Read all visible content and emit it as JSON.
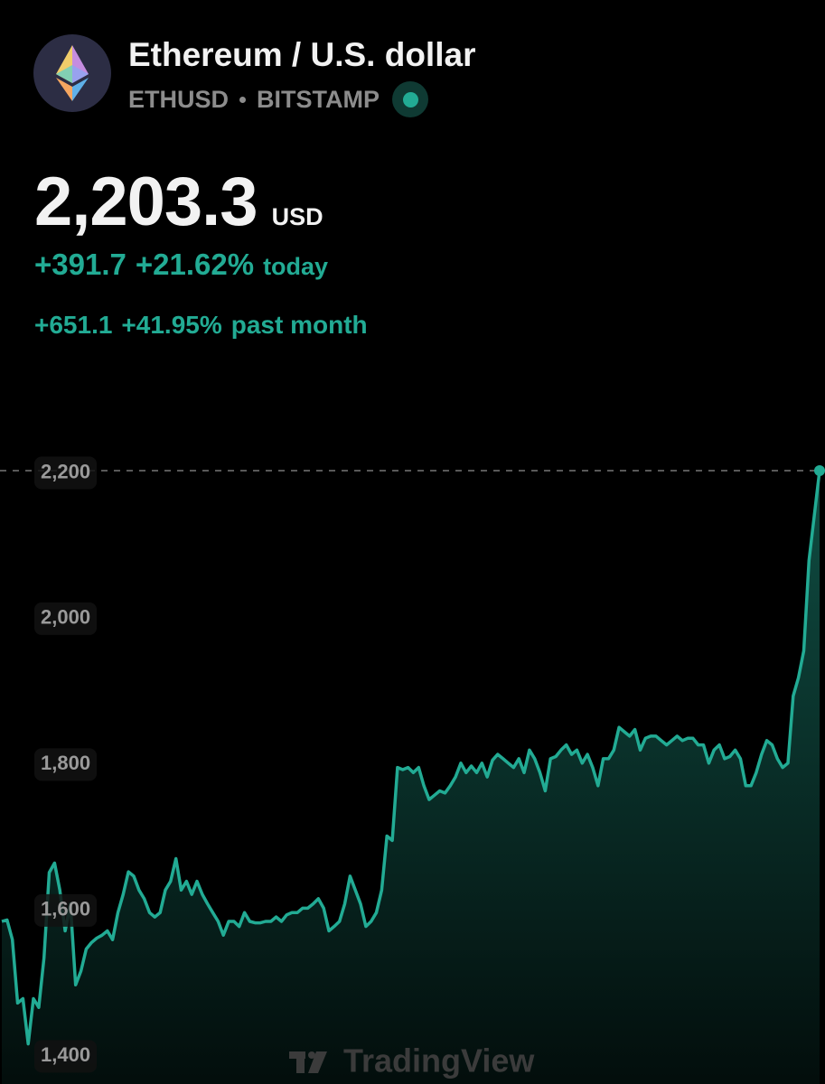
{
  "header": {
    "title": "Ethereum / U.S. dollar",
    "symbol": "ETHUSD",
    "exchange": "BITSTAMP",
    "price": "2,203.3",
    "currency": "USD",
    "day_change": "+391.7",
    "day_change_pct": "+21.62%",
    "day_period": "today",
    "month_change": "+651.1",
    "month_change_pct": "+41.95%",
    "month_period": "past month"
  },
  "watermark": "TradingView",
  "chart_data": {
    "type": "area",
    "color": "#22ab94",
    "values": [
      1585,
      1587,
      1560,
      1473,
      1479,
      1417,
      1479,
      1467,
      1535,
      1652,
      1665,
      1628,
      1572,
      1609,
      1498,
      1517,
      1547,
      1556,
      1562,
      1566,
      1572,
      1560,
      1597,
      1622,
      1653,
      1647,
      1628,
      1616,
      1597,
      1591,
      1597,
      1628,
      1640,
      1671,
      1628,
      1640,
      1622,
      1640,
      1622,
      1609,
      1597,
      1585,
      1566,
      1585,
      1585,
      1578,
      1597,
      1585,
      1583,
      1583,
      1585,
      1585,
      1591,
      1585,
      1594,
      1597,
      1597,
      1603,
      1603,
      1609,
      1616,
      1603,
      1572,
      1578,
      1585,
      1609,
      1647,
      1628,
      1609,
      1578,
      1585,
      1597,
      1628,
      1702,
      1696,
      1796,
      1793,
      1796,
      1789,
      1796,
      1771,
      1752,
      1758,
      1764,
      1761,
      1771,
      1783,
      1802,
      1789,
      1798,
      1789,
      1802,
      1783,
      1806,
      1814,
      1808,
      1802,
      1796,
      1808,
      1789,
      1820,
      1808,
      1789,
      1764,
      1808,
      1811,
      1820,
      1827,
      1814,
      1820,
      1802,
      1814,
      1796,
      1771,
      1808,
      1808,
      1820,
      1851,
      1845,
      1839,
      1848,
      1820,
      1836,
      1839,
      1839,
      1833,
      1827,
      1833,
      1839,
      1833,
      1836,
      1836,
      1827,
      1827,
      1802,
      1820,
      1827,
      1808,
      1811,
      1820,
      1808,
      1771,
      1771,
      1789,
      1814,
      1833,
      1827,
      1808,
      1796,
      1802,
      1894,
      1919,
      1956,
      2080,
      2142,
      2203
    ],
    "ylim": [
      1362,
      2265
    ],
    "yticks": [
      {
        "value": 1400,
        "label": "1,400"
      },
      {
        "value": 1600,
        "label": "1,600"
      },
      {
        "value": 1800,
        "label": "1,800"
      },
      {
        "value": 2000,
        "label": "2,000"
      },
      {
        "value": 2200,
        "label": "2,200"
      }
    ],
    "grid": false
  }
}
